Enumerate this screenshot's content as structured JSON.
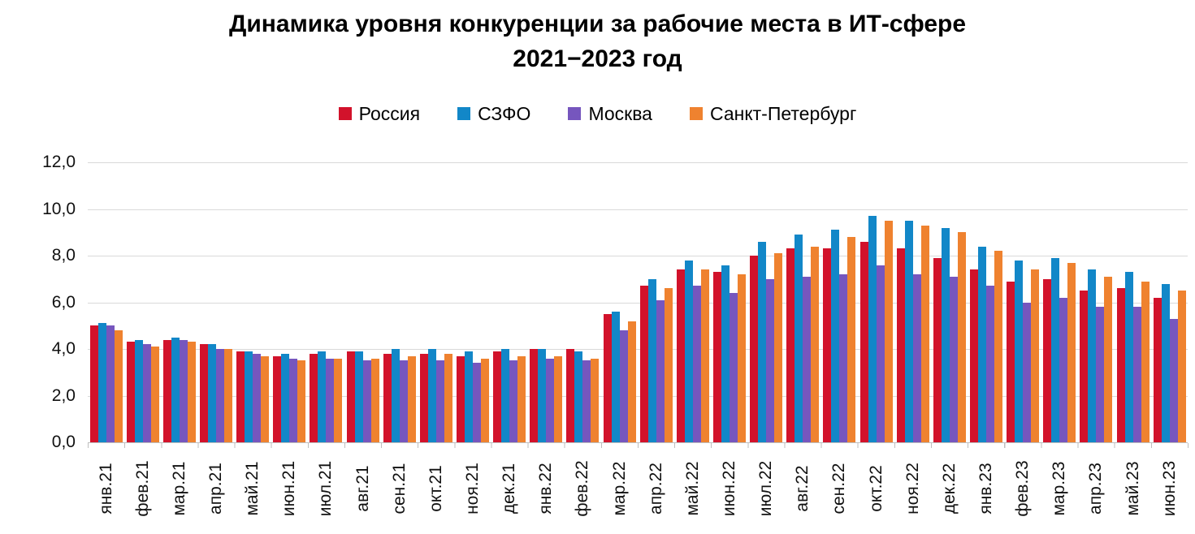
{
  "title": {
    "line1": "Динамика уровня конкуренции за рабочие места в ИТ-сфере",
    "line2": "2021−2023 год"
  },
  "colors": {
    "russia": "#d2122b",
    "szfo": "#1287c8",
    "moscow": "#7656be",
    "spb": "#ef822f",
    "gridline": "#d9d9d9",
    "axis": "#bfbfbf"
  },
  "chart_data": {
    "type": "bar",
    "title": "Динамика уровня конкуренции за рабочие места в ИТ-сфере 2021−2023 год",
    "xlabel": "",
    "ylabel": "",
    "ylim": [
      0,
      12
    ],
    "ytick_step": 2,
    "yticks": [
      "0,0",
      "2,0",
      "4,0",
      "6,0",
      "8,0",
      "10,0",
      "12,0"
    ],
    "grid": true,
    "legend_position": "top",
    "categories": [
      "янв.21",
      "фев.21",
      "мар.21",
      "апр.21",
      "май.21",
      "июн.21",
      "июл.21",
      "авг.21",
      "сен.21",
      "окт.21",
      "ноя.21",
      "дек.21",
      "янв.22",
      "фев.22",
      "мар.22",
      "апр.22",
      "май.22",
      "июн.22",
      "июл.22",
      "авг.22",
      "сен.22",
      "окт.22",
      "ноя.22",
      "дек.22",
      "янв.23",
      "фев.23",
      "мар.23",
      "апр.23",
      "май.23",
      "июн.23"
    ],
    "series": [
      {
        "name": "Россия",
        "color": "#d2122b",
        "values": [
          5.0,
          4.3,
          4.4,
          4.2,
          3.9,
          3.7,
          3.8,
          3.9,
          3.8,
          3.8,
          3.7,
          3.9,
          4.0,
          4.0,
          5.5,
          6.7,
          7.4,
          7.3,
          8.0,
          8.3,
          8.3,
          8.6,
          8.3,
          7.9,
          7.4,
          6.9,
          7.0,
          6.5,
          6.6,
          6.2
        ]
      },
      {
        "name": "СЗФО",
        "color": "#1287c8",
        "values": [
          5.1,
          4.4,
          4.5,
          4.2,
          3.9,
          3.8,
          3.9,
          3.9,
          4.0,
          4.0,
          3.9,
          4.0,
          4.0,
          3.9,
          5.6,
          7.0,
          7.8,
          7.6,
          8.6,
          8.9,
          9.1,
          9.7,
          9.5,
          9.2,
          8.4,
          7.8,
          7.9,
          7.4,
          7.3,
          6.8
        ]
      },
      {
        "name": "Москва",
        "color": "#7656be",
        "values": [
          5.0,
          4.2,
          4.4,
          4.0,
          3.8,
          3.6,
          3.6,
          3.5,
          3.5,
          3.5,
          3.4,
          3.5,
          3.6,
          3.5,
          4.8,
          6.1,
          6.7,
          6.4,
          7.0,
          7.1,
          7.2,
          7.6,
          7.2,
          7.1,
          6.7,
          6.0,
          6.2,
          5.8,
          5.8,
          5.3
        ]
      },
      {
        "name": "Санкт-Петербург",
        "color": "#ef822f",
        "values": [
          4.8,
          4.1,
          4.3,
          4.0,
          3.7,
          3.5,
          3.6,
          3.6,
          3.7,
          3.8,
          3.6,
          3.7,
          3.7,
          3.6,
          5.2,
          6.6,
          7.4,
          7.2,
          8.1,
          8.4,
          8.8,
          9.5,
          9.3,
          9.0,
          8.2,
          7.4,
          7.7,
          7.1,
          6.9,
          6.5
        ]
      }
    ]
  }
}
